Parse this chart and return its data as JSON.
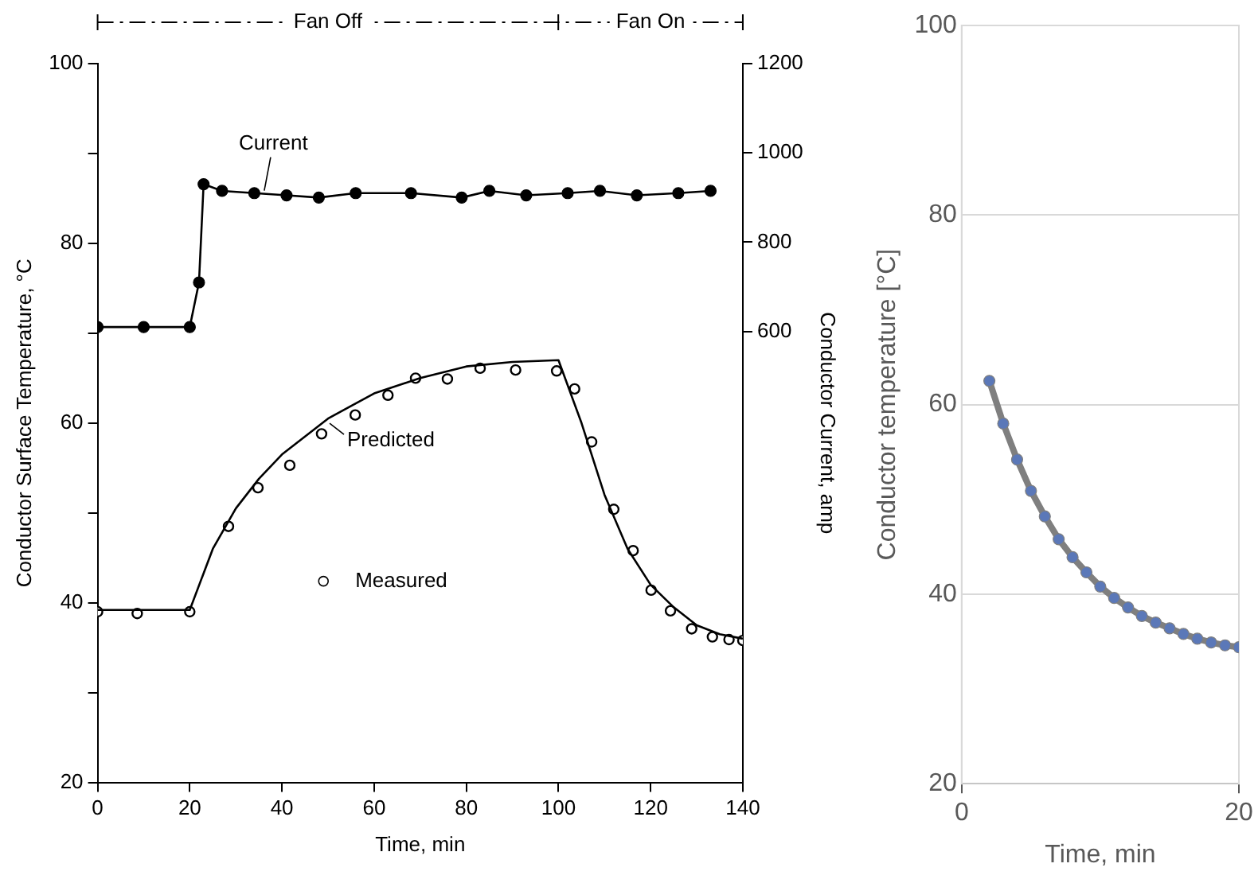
{
  "chart_data": [
    {
      "type": "line",
      "xlabel": "Time, min",
      "ylabel": "Conductor Surface Temperature, °C",
      "y2label": "Conductor Current, amp",
      "xlim": [
        0,
        140
      ],
      "xticks": [
        0,
        20,
        40,
        60,
        80,
        100,
        120,
        140
      ],
      "ylim": [
        20,
        100
      ],
      "yticks": [
        20,
        {
          "value": 30,
          "label": null
        },
        40,
        {
          "value": 50,
          "label": null
        },
        60,
        {
          "value": 70,
          "label": null
        },
        80,
        {
          "value": 90,
          "label": null
        },
        100
      ],
      "y2lim": [
        -410,
        1200
      ],
      "y2ticks": [
        600,
        800,
        1000,
        1200
      ],
      "grid": false,
      "legend": "bottom",
      "annotations": [
        "Fan Off",
        "Fan On"
      ],
      "series": [
        {
          "name": "Current",
          "type": "line",
          "axis": "y2",
          "marker": "circle",
          "color": "#000000",
          "x": [
            0,
            10,
            20,
            22,
            23,
            27,
            34,
            41,
            48,
            56,
            68,
            79,
            85,
            93,
            102,
            109,
            117,
            126,
            133
          ],
          "values": [
            610,
            610,
            610,
            710,
            930,
            915,
            910,
            905,
            900,
            910,
            910,
            900,
            915,
            905,
            910,
            915,
            905,
            910,
            915
          ]
        },
        {
          "name": "Predicted",
          "type": "line",
          "marker": "none",
          "color": "#000000",
          "x": [
            0,
            10,
            20,
            25,
            30,
            35,
            40,
            50,
            60,
            70,
            80,
            90,
            100,
            105,
            110,
            115,
            120,
            125,
            130,
            135,
            140
          ],
          "values": [
            39.2,
            39.2,
            39.2,
            46,
            50.5,
            53.8,
            56.5,
            60.5,
            63.3,
            65,
            66.3,
            66.8,
            67,
            60,
            52,
            46,
            42,
            39.5,
            37.5,
            36.5,
            36
          ]
        },
        {
          "name": "Measured",
          "type": "scatter",
          "marker": "circle",
          "color": "#000000",
          "x": [
            0,
            8.6,
            20,
            28.4,
            34.8,
            41.7,
            48.6,
            55.9,
            63,
            69,
            75.9,
            83,
            90.7,
            99.6,
            103.5,
            107.2,
            112,
            116.2,
            120.1,
            124.3,
            128.9,
            133.4,
            137,
            140
          ],
          "values": [
            39,
            38.8,
            39,
            48.5,
            52.8,
            55.3,
            58.8,
            60.9,
            63.1,
            65,
            64.9,
            66.1,
            65.9,
            65.8,
            63.8,
            57.9,
            50.4,
            45.8,
            41.4,
            39.1,
            37.1,
            36.2,
            35.9,
            35.8
          ]
        }
      ]
    },
    {
      "type": "line",
      "xlabel": "Time, min",
      "ylabel": "Conductor temperature [°C]",
      "xlim": [
        0,
        20
      ],
      "xticks": [
        0,
        20
      ],
      "ylim": [
        20,
        100
      ],
      "yticks": [
        20,
        40,
        60,
        80,
        100
      ],
      "grid": "y",
      "marker": "circle",
      "color": "#7f7f7f",
      "x": [
        2,
        3,
        4,
        5,
        6,
        7,
        8,
        9,
        10,
        11,
        12,
        13,
        14,
        15,
        16,
        17,
        18,
        19,
        20
      ],
      "values": [
        62.5,
        58.0,
        54.2,
        50.9,
        48.2,
        45.8,
        43.9,
        42.3,
        40.8,
        39.6,
        38.6,
        37.7,
        37.0,
        36.4,
        35.8,
        35.3,
        34.9,
        34.6,
        34.4
      ]
    }
  ]
}
